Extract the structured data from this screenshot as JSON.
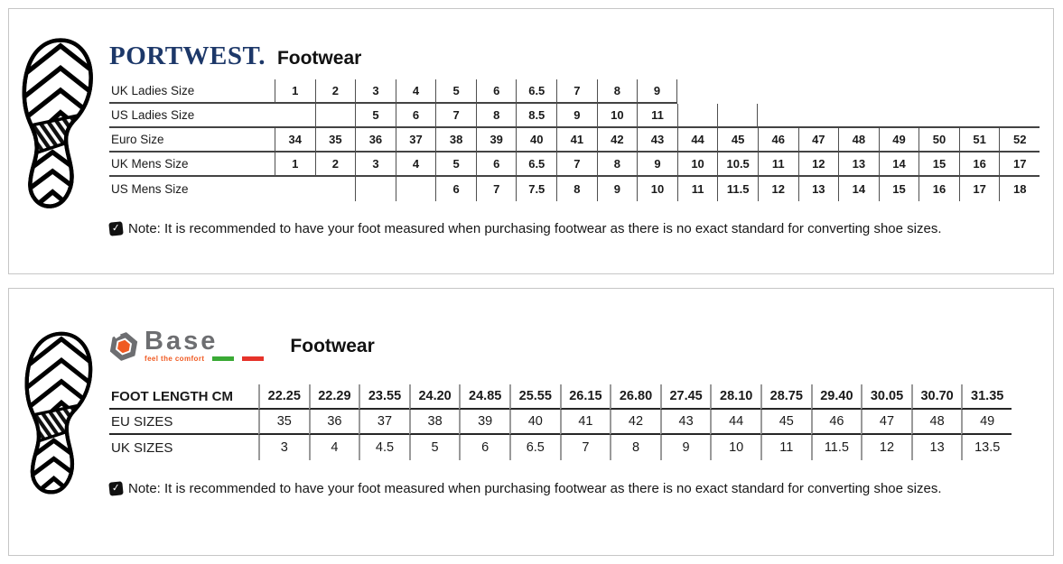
{
  "portwest": {
    "brand": "PORTWEST.",
    "product": "Footwear",
    "brand_color": "#1d3869",
    "table": {
      "rows": [
        {
          "label": "UK Ladies Size",
          "cells": [
            "1",
            "2",
            "3",
            "4",
            "5",
            "6",
            "6.5",
            "7",
            "8",
            "9",
            null,
            null,
            null,
            null,
            null,
            null,
            null,
            null,
            null
          ]
        },
        {
          "label": "US Ladies Size",
          "cells": [
            null,
            "",
            "5",
            "6",
            "7",
            "8",
            "8.5",
            "9",
            "10",
            "11",
            "",
            "",
            null,
            null,
            null,
            null,
            null,
            null,
            null
          ]
        },
        {
          "label": "Euro Size",
          "cells": [
            "34",
            "35",
            "36",
            "37",
            "38",
            "39",
            "40",
            "41",
            "42",
            "43",
            "44",
            "45",
            "46",
            "47",
            "48",
            "49",
            "50",
            "51",
            "52"
          ]
        },
        {
          "label": "UK Mens Size",
          "cells": [
            "1",
            "2",
            "3",
            "4",
            "5",
            "6",
            "6.5",
            "7",
            "8",
            "9",
            "10",
            "10.5",
            "11",
            "12",
            "13",
            "14",
            "15",
            "16",
            "17"
          ]
        },
        {
          "label": "US Mens Size",
          "cells": [
            null,
            null,
            "",
            "",
            "6",
            "7",
            "7.5",
            "8",
            "9",
            "10",
            "11",
            "11.5",
            "12",
            "13",
            "14",
            "15",
            "16",
            "17",
            "18"
          ]
        }
      ]
    },
    "note": "Note: It is recommended to have your foot measured when purchasing footwear as there is no exact standard for converting shoe sizes."
  },
  "base": {
    "brand": "Base",
    "tagline": "feel the comfort",
    "product": "Footwear",
    "brand_color": "#6d6e71",
    "accent_orange": "#f05a22",
    "flag_green": "#3aaa35",
    "flag_red": "#e6332a",
    "table": {
      "rows": [
        {
          "label": "FOOT LENGTH CM",
          "cells": [
            "22.25",
            "22.29",
            "23.55",
            "24.20",
            "24.85",
            "25.55",
            "26.15",
            "26.80",
            "27.45",
            "28.10",
            "28.75",
            "29.40",
            "30.05",
            "30.70",
            "31.35"
          ]
        },
        {
          "label": "EU SIZES",
          "cells": [
            "35",
            "36",
            "37",
            "38",
            "39",
            "40",
            "41",
            "42",
            "43",
            "44",
            "45",
            "46",
            "47",
            "48",
            "49"
          ]
        },
        {
          "label": "UK SIZES",
          "cells": [
            "3",
            "4",
            "4.5",
            "5",
            "6",
            "6.5",
            "7",
            "8",
            "9",
            "10",
            "11",
            "11.5",
            "12",
            "13",
            "13.5"
          ]
        }
      ]
    },
    "note": "Note: It is recommended to have your foot measured when purchasing footwear as there is no exact standard for converting shoe sizes."
  },
  "note_icon": "✓"
}
